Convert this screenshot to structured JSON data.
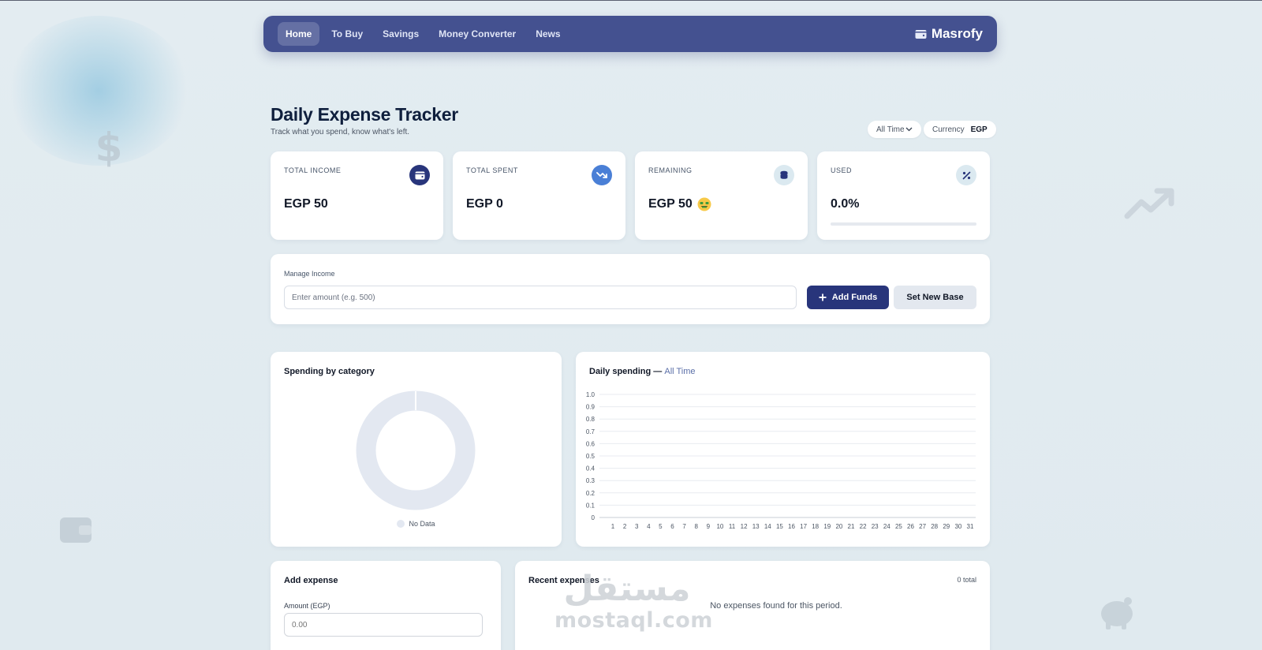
{
  "nav": {
    "items": [
      {
        "label": "Home",
        "active": true
      },
      {
        "label": "To Buy",
        "active": false
      },
      {
        "label": "Savings",
        "active": false
      },
      {
        "label": "Money Converter",
        "active": false
      },
      {
        "label": "News",
        "active": false
      }
    ],
    "brand": "Masrofy",
    "brand_icon": "wallet-icon"
  },
  "header": {
    "title": "Daily Expense Tracker",
    "subtitle": "Track what you spend, know what's left.",
    "period_filter": "All Time",
    "currency_label": "Currency",
    "currency_value": "EGP"
  },
  "stats": {
    "total_income": {
      "label": "TOTAL INCOME",
      "value": "EGP 50",
      "icon": "wallet-icon",
      "icon_bg": "#28357b"
    },
    "total_spent": {
      "label": "TOTAL SPENT",
      "value": "EGP 0",
      "icon": "trending-down-icon",
      "icon_bg": "#4a7fd6"
    },
    "remaining": {
      "label": "REMAINING",
      "value": "EGP 50",
      "emoji": "money-face-emoji",
      "icon": "coins-icon",
      "icon_bg": "#dbe9f0"
    },
    "used": {
      "label": "USED",
      "value": "0.0%",
      "icon": "percent-icon",
      "icon_bg": "#dbe9f0",
      "progress": 0
    }
  },
  "income": {
    "section_label": "Manage Income",
    "placeholder": "Enter amount (e.g. 500)",
    "add_button": "Add Funds",
    "reset_button": "Set New Base"
  },
  "category_chart": {
    "title": "Spending by category",
    "legend_label": "No Data",
    "ring_color": "#e3e8f1"
  },
  "daily_chart": {
    "title_prefix": "Daily spending —",
    "title_period": "All Time"
  },
  "chart_data": {
    "type": "line",
    "title": "Daily spending — All Time",
    "x": [
      1,
      2,
      3,
      4,
      5,
      6,
      7,
      8,
      9,
      10,
      11,
      12,
      13,
      14,
      15,
      16,
      17,
      18,
      19,
      20,
      21,
      22,
      23,
      24,
      25,
      26,
      27,
      28,
      29,
      30,
      31
    ],
    "y_ticks": [
      "0",
      "0.1",
      "0.2",
      "0.3",
      "0.4",
      "0.5",
      "0.6",
      "0.7",
      "0.8",
      "0.9",
      "1.0"
    ],
    "ylim": [
      0,
      1
    ],
    "series": [],
    "grid": true,
    "xlabel": "",
    "ylabel": ""
  },
  "add_expense": {
    "title": "Add expense",
    "amount_label": "Amount (EGP)",
    "amount_placeholder": "0.00"
  },
  "recent": {
    "title": "Recent expenses",
    "count": "0 total",
    "empty_message": "No expenses found for this period."
  },
  "watermark": {
    "arabic": "مستقل",
    "latin": "mostaql.com"
  }
}
